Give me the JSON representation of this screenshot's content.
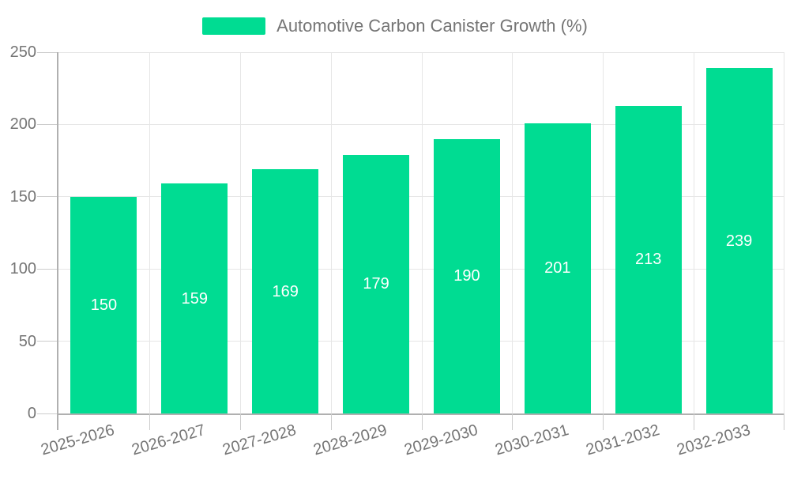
{
  "chart_data": {
    "type": "bar",
    "title": "Automotive Carbon Canister Growth (%)",
    "legend": {
      "label": "Automotive Carbon Canister Growth (%)",
      "position": "top"
    },
    "categories": [
      "2025-2026",
      "2026-2027",
      "2027-2028",
      "2028-2029",
      "2029-2030",
      "2030-2031",
      "2031-2032",
      "2032-2033"
    ],
    "series": [
      {
        "name": "Automotive Carbon Canister Growth (%)",
        "values": [
          150,
          159,
          169,
          179,
          190,
          201,
          213,
          239
        ]
      }
    ],
    "data_labels": [
      "150",
      "159",
      "169",
      "179",
      "190",
      "201",
      "213",
      "239"
    ],
    "xlabel": "",
    "ylabel": "",
    "ylim": [
      0,
      250
    ],
    "y_ticks": [
      0,
      50,
      100,
      150,
      200,
      250
    ],
    "grid": true,
    "colors": {
      "bar": "#00DC92",
      "bar_label": "#ffffff",
      "axis_line": "#b0b0b0",
      "gridline": "#e6e6e6",
      "tick_mark": "#cccccc",
      "tick_text": "#757575",
      "legend_text": "#757575",
      "background": "#ffffff"
    }
  }
}
